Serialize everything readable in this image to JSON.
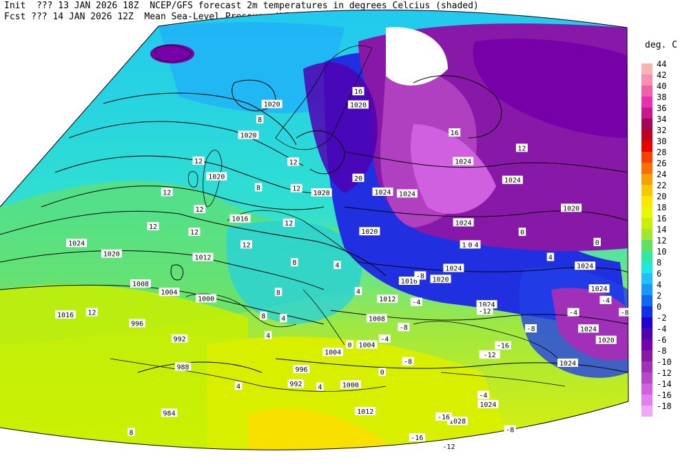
{
  "header": {
    "line1_left": "Init  ??? 13 JAN 2026 18Z",
    "line1_right": "NCEP/GFS forecast 2m temperatures in degrees Celcius (shaded)",
    "line2_left": "Fcst ??? 14 JAN 2026 12Z",
    "line2_right": "Mean Sea-Level Pressure (hPa) (black)."
  },
  "legend": {
    "unit": "deg. C",
    "entries": [
      {
        "label": "44",
        "color": "#f8b4b4"
      },
      {
        "label": "42",
        "color": "#f890b0"
      },
      {
        "label": "40",
        "color": "#f060a8"
      },
      {
        "label": "38",
        "color": "#e830b0"
      },
      {
        "label": "36",
        "color": "#c81890"
      },
      {
        "label": "34",
        "color": "#a00858"
      },
      {
        "label": "32",
        "color": "#c00020"
      },
      {
        "label": "30",
        "color": "#e80000"
      },
      {
        "label": "28",
        "color": "#f84000"
      },
      {
        "label": "26",
        "color": "#f87000"
      },
      {
        "label": "24",
        "color": "#f8a000"
      },
      {
        "label": "22",
        "color": "#f8c800"
      },
      {
        "label": "20",
        "color": "#f8e800"
      },
      {
        "label": "18",
        "color": "#e8f800"
      },
      {
        "label": "16",
        "color": "#c8f000"
      },
      {
        "label": "14",
        "color": "#a0e830"
      },
      {
        "label": "12",
        "color": "#60e060"
      },
      {
        "label": "10",
        "color": "#30e8a0"
      },
      {
        "label": "8",
        "color": "#20e8e0"
      },
      {
        "label": "6",
        "color": "#20c0f8"
      },
      {
        "label": "4",
        "color": "#1898f8"
      },
      {
        "label": "2",
        "color": "#1068f0"
      },
      {
        "label": "0",
        "color": "#1030e8"
      },
      {
        "label": "-2",
        "color": "#2000d0"
      },
      {
        "label": "-4",
        "color": "#5000b0"
      },
      {
        "label": "-6",
        "color": "#7800a8"
      },
      {
        "label": "-8",
        "color": "#8818a8"
      },
      {
        "label": "-10",
        "color": "#a030b8"
      },
      {
        "label": "-12",
        "color": "#b848c8"
      },
      {
        "label": "-14",
        "color": "#d060e0"
      },
      {
        "label": "-16",
        "color": "#e080f0"
      },
      {
        "label": "-18",
        "color": "#f0a8f8"
      }
    ]
  },
  "map_labels": {
    "pressure": [
      {
        "text": "984",
        "lon": -38,
        "lat": 63
      },
      {
        "text": "988",
        "lon": -30,
        "lat": 58
      },
      {
        "text": "992",
        "lon": -28,
        "lat": 54
      },
      {
        "text": "996",
        "lon": -34,
        "lat": 49
      },
      {
        "text": "1000",
        "lon": -20,
        "lat": 50
      },
      {
        "text": "1004",
        "lon": -26,
        "lat": 47
      },
      {
        "text": "1008",
        "lon": -30,
        "lat": 44
      },
      {
        "text": "1012",
        "lon": -18,
        "lat": 44
      },
      {
        "text": "1016",
        "lon": -44,
        "lat": 42
      },
      {
        "text": "1020",
        "lon": -32,
        "lat": 38
      },
      {
        "text": "1024",
        "lon": -36,
        "lat": 34
      },
      {
        "text": "1016",
        "lon": -10,
        "lat": 40
      },
      {
        "text": "1020",
        "lon": -12,
        "lat": 33
      },
      {
        "text": "1020",
        "lon": -6,
        "lat": 28
      },
      {
        "text": "1020",
        "lon": -2,
        "lat": 24
      },
      {
        "text": "1020",
        "lon": 10,
        "lat": 25
      },
      {
        "text": "1020",
        "lon": 4,
        "lat": 38
      },
      {
        "text": "1020",
        "lon": 12,
        "lat": 44
      },
      {
        "text": "1024",
        "lon": 14,
        "lat": 38
      },
      {
        "text": "1024",
        "lon": 18,
        "lat": 38
      },
      {
        "text": "1024",
        "lon": 26,
        "lat": 32
      },
      {
        "text": "1024",
        "lon": 34,
        "lat": 33
      },
      {
        "text": "1020",
        "lon": 44,
        "lat": 34
      },
      {
        "text": "1024",
        "lon": 30,
        "lat": 44
      },
      {
        "text": "1024",
        "lon": 28,
        "lat": 41
      },
      {
        "text": "1024",
        "lon": 50,
        "lat": 41
      },
      {
        "text": "1024",
        "lon": 54,
        "lat": 43
      },
      {
        "text": "1016",
        "lon": 20,
        "lat": 51
      },
      {
        "text": "1012",
        "lon": 16,
        "lat": 54
      },
      {
        "text": "1008",
        "lon": 14,
        "lat": 57
      },
      {
        "text": "1004",
        "lon": 12,
        "lat": 61
      },
      {
        "text": "1004",
        "lon": 4,
        "lat": 62
      },
      {
        "text": "1000",
        "lon": 8,
        "lat": 67
      },
      {
        "text": "1012",
        "lon": 12,
        "lat": 71
      },
      {
        "text": "992",
        "lon": -6,
        "lat": 66
      },
      {
        "text": "996",
        "lon": -4,
        "lat": 64
      },
      {
        "text": "1020",
        "lon": 26,
        "lat": 50
      },
      {
        "text": "1024",
        "lon": 28,
        "lat": 48
      },
      {
        "text": "1024",
        "lon": 36,
        "lat": 52
      },
      {
        "text": "1024",
        "lon": 40,
        "lat": 59
      },
      {
        "text": "1024",
        "lon": 44,
        "lat": 66
      },
      {
        "text": "1028",
        "lon": 38,
        "lat": 70
      },
      {
        "text": "1024",
        "lon": 56,
        "lat": 55
      },
      {
        "text": "1024",
        "lon": 56,
        "lat": 49
      },
      {
        "text": "1020",
        "lon": 60,
        "lat": 49
      }
    ],
    "temperature": [
      {
        "text": "-16",
        "lon": 28,
        "lat": 74
      },
      {
        "text": "-12",
        "lon": 38,
        "lat": 74
      },
      {
        "text": "-16",
        "lon": 34,
        "lat": 70
      },
      {
        "text": "-8",
        "lon": 52,
        "lat": 68
      },
      {
        "text": "-4",
        "lon": 42,
        "lat": 65
      },
      {
        "text": "-8",
        "lon": 22,
        "lat": 63
      },
      {
        "text": "-12",
        "lon": 40,
        "lat": 59
      },
      {
        "text": "-16",
        "lon": 42,
        "lat": 57
      },
      {
        "text": "-12",
        "lon": 36,
        "lat": 53
      },
      {
        "text": "-8",
        "lon": 46,
        "lat": 53
      },
      {
        "text": "-4",
        "lon": 52,
        "lat": 48
      },
      {
        "text": "-8",
        "lon": 60,
        "lat": 44
      },
      {
        "text": "-4",
        "lon": 56,
        "lat": 44
      },
      {
        "text": "-8",
        "lon": 20,
        "lat": 58
      },
      {
        "text": "-4",
        "lon": 16,
        "lat": 60
      },
      {
        "text": "-4",
        "lon": 22,
        "lat": 54
      },
      {
        "text": "-8",
        "lon": 22,
        "lat": 50
      },
      {
        "text": "0",
        "lon": 16,
        "lat": 65
      },
      {
        "text": "0",
        "lon": 8,
        "lat": 61
      },
      {
        "text": "0",
        "lon": 30,
        "lat": 44
      },
      {
        "text": "0",
        "lon": 38,
        "lat": 40
      },
      {
        "text": "0",
        "lon": 50,
        "lat": 37
      },
      {
        "text": "4",
        "lon": -20,
        "lat": 64
      },
      {
        "text": "4",
        "lon": 0,
        "lat": 67
      },
      {
        "text": "4",
        "lon": -10,
        "lat": 58
      },
      {
        "text": "4",
        "lon": -6,
        "lat": 56
      },
      {
        "text": "4",
        "lon": 10,
        "lat": 53
      },
      {
        "text": "4",
        "lon": 6,
        "lat": 49
      },
      {
        "text": "4",
        "lon": 44,
        "lat": 42
      },
      {
        "text": "8",
        "lon": -48,
        "lat": 62
      },
      {
        "text": "8",
        "lon": -10,
        "lat": 55
      },
      {
        "text": "8",
        "lon": -6,
        "lat": 52
      },
      {
        "text": "8",
        "lon": -2,
        "lat": 48
      },
      {
        "text": "8",
        "lon": -6,
        "lat": 36
      },
      {
        "text": "8",
        "lon": -4,
        "lat": 26
      },
      {
        "text": "8",
        "lon": 54,
        "lat": 33
      },
      {
        "text": "12",
        "lon": -40,
        "lat": 44
      },
      {
        "text": "12",
        "lon": -18,
        "lat": 40
      },
      {
        "text": "12",
        "lon": -10,
        "lat": 44
      },
      {
        "text": "12",
        "lon": -16,
        "lat": 37
      },
      {
        "text": "12",
        "lon": -24,
        "lat": 37
      },
      {
        "text": "12",
        "lon": -20,
        "lat": 33
      },
      {
        "text": "12",
        "lon": -2,
        "lat": 42
      },
      {
        "text": "12",
        "lon": 0,
        "lat": 37
      },
      {
        "text": "12",
        "lon": 0,
        "lat": 33
      },
      {
        "text": "12",
        "lon": -14,
        "lat": 30
      },
      {
        "text": "16",
        "lon": 24,
        "lat": 28
      },
      {
        "text": "16",
        "lon": 10,
        "lat": 23
      },
      {
        "text": "12",
        "lon": 34,
        "lat": 28
      },
      {
        "text": "20",
        "lon": 10,
        "lat": 36
      }
    ]
  }
}
